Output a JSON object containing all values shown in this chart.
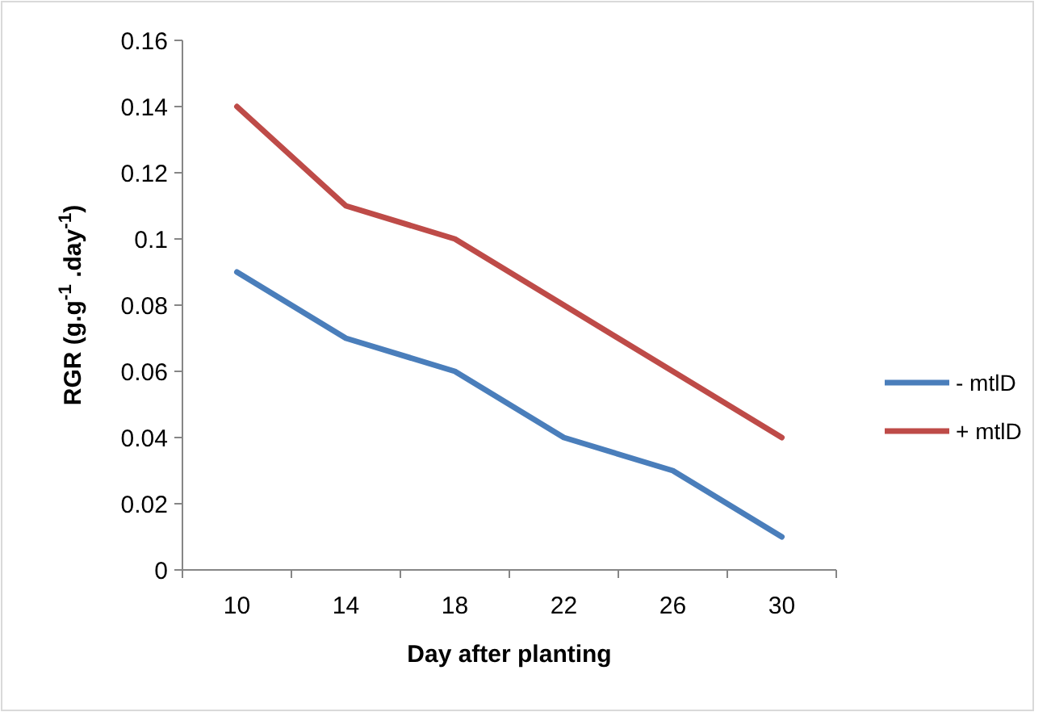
{
  "chart_data": {
    "type": "line",
    "xlabel": "Day after planting",
    "ylabel": "RGR (g.g$^{-1}$ .day$^{-1}$)",
    "categories": [
      "10",
      "14",
      "18",
      "22",
      "26",
      "30"
    ],
    "series": [
      {
        "name": "- mtlD",
        "color": "#4a7ebb",
        "values": [
          0.09,
          0.07,
          0.06,
          0.04,
          0.03,
          0.01
        ]
      },
      {
        "name": "+ mtlD",
        "color": "#be4b48",
        "values": [
          0.14,
          0.11,
          0.1,
          0.08,
          0.06,
          0.04
        ]
      }
    ],
    "ylim": [
      0,
      0.16
    ],
    "yticks": [
      0,
      0.02,
      0.04,
      0.06,
      0.08,
      0.1,
      0.12,
      0.14,
      0.16
    ],
    "grid": false,
    "legend": "right",
    "marker": "none",
    "line_style": "solid"
  }
}
